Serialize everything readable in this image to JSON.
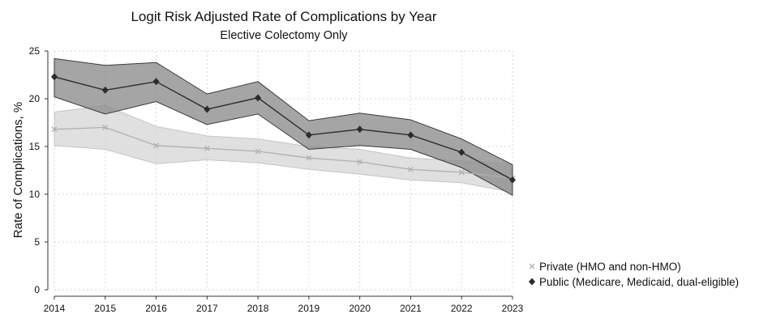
{
  "colors": {
    "private_band": "#d6d6d6",
    "private_line": "#b0b0b0",
    "public_band": "#8c8c8c",
    "public_line": "#2b2b2b"
  },
  "chart_data": {
    "type": "line",
    "title": "Logit Risk Adjusted Rate of Complications by Year",
    "subtitle": "Elective Colectomy Only",
    "xlabel": "",
    "ylabel": "Rate of Complications, %",
    "ylim": [
      0,
      25
    ],
    "yticks": [
      0,
      5,
      10,
      15,
      20,
      25
    ],
    "x": [
      2014,
      2015,
      2016,
      2017,
      2018,
      2019,
      2020,
      2021,
      2022,
      2023
    ],
    "grid": true,
    "legend_position": "bottom-right",
    "series": [
      {
        "name": "Private (HMO and non-HMO)",
        "marker": "x",
        "values": [
          16.8,
          17.0,
          15.1,
          14.8,
          14.5,
          13.8,
          13.4,
          12.6,
          12.3,
          11.7
        ],
        "ci_low": [
          15.1,
          14.7,
          13.2,
          13.6,
          13.3,
          12.6,
          12.1,
          11.5,
          11.2,
          10.2
        ],
        "ci_high": [
          18.6,
          19.3,
          17.1,
          16.1,
          15.8,
          15.0,
          14.7,
          13.8,
          13.5,
          13.1
        ]
      },
      {
        "name": "Public (Medicare, Medicaid, dual-eligible)",
        "marker": "diamond",
        "values": [
          22.3,
          20.9,
          21.8,
          18.9,
          20.1,
          16.2,
          16.8,
          16.2,
          14.4,
          11.5
        ],
        "ci_low": [
          20.2,
          18.4,
          19.7,
          17.3,
          18.4,
          14.7,
          15.1,
          14.7,
          12.8,
          9.9
        ],
        "ci_high": [
          24.2,
          23.5,
          23.8,
          20.5,
          21.8,
          17.7,
          18.5,
          17.8,
          15.8,
          13.1
        ]
      }
    ]
  }
}
